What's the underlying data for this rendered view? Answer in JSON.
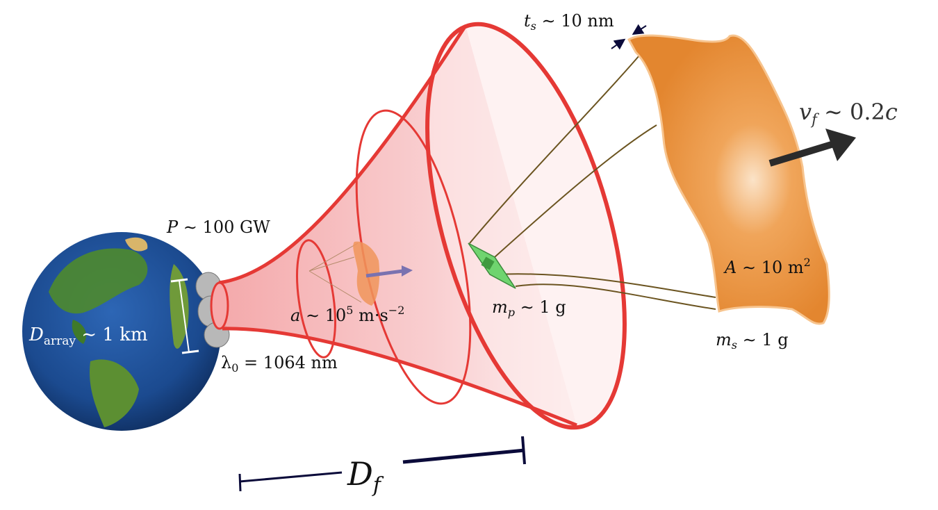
{
  "labels": {
    "power": {
      "symbol": "P",
      "rel": "∼",
      "value": "100 GW"
    },
    "array_diameter": {
      "symbol": "D",
      "sub": "array",
      "rel": "∼",
      "value": "1 km"
    },
    "wavelength": {
      "symbol": "λ",
      "sub": "0",
      "rel": "=",
      "value": "1064 nm"
    },
    "acceleration": {
      "symbol": "a",
      "rel": "∼",
      "value": "10",
      "sup": "5",
      "unit": "m·s",
      "unit_sup": "−2"
    },
    "payload_mass": {
      "symbol": "m",
      "sub": "p",
      "rel": "∼",
      "value": "1 g"
    },
    "sail_thickness": {
      "symbol": "t",
      "sub": "s",
      "rel": "∼",
      "value": "10 nm"
    },
    "sail_velocity": {
      "symbol": "v",
      "sub": "f",
      "rel": "∼",
      "value": "0.2",
      "unit": "c"
    },
    "sail_area": {
      "symbol": "A",
      "rel": "∼",
      "value": "10 m",
      "sup": "2"
    },
    "sail_mass": {
      "symbol": "m",
      "sub": "s",
      "rel": "∼",
      "value": "1 g"
    },
    "distance": {
      "symbol": "D",
      "sub": "f"
    }
  },
  "colors": {
    "beam_edge": "#e53935",
    "beam_fill": "#f4a6a8",
    "sail": "#e98c35",
    "chip": "#6fd46f",
    "tether": "#6b5420",
    "ocean": "#1f4f9a",
    "land": "#4e8a2e"
  }
}
